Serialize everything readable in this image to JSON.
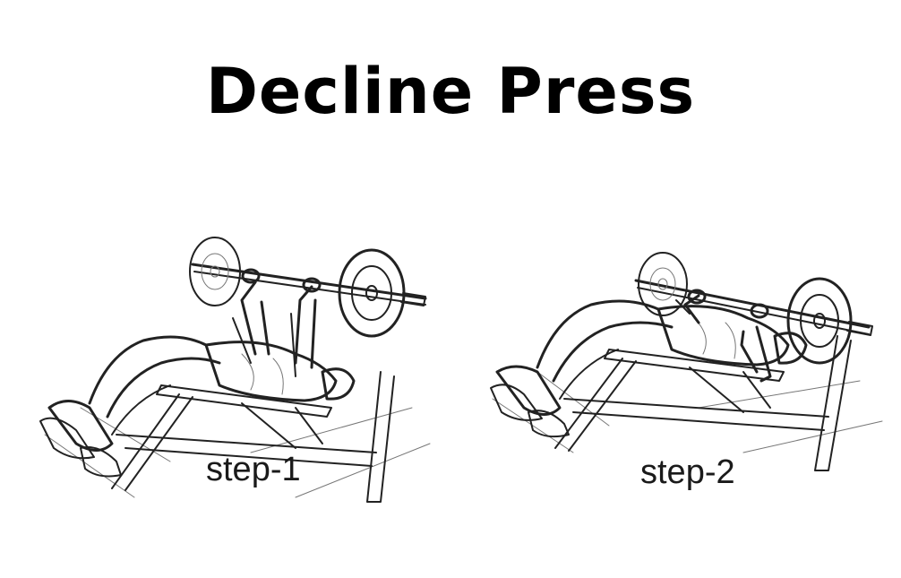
{
  "title": "Decline Press",
  "steps": [
    {
      "label": "step-1",
      "illustration": "decline-press-bar-up-drawing"
    },
    {
      "label": "step-2",
      "illustration": "decline-press-bar-down-drawing"
    }
  ]
}
